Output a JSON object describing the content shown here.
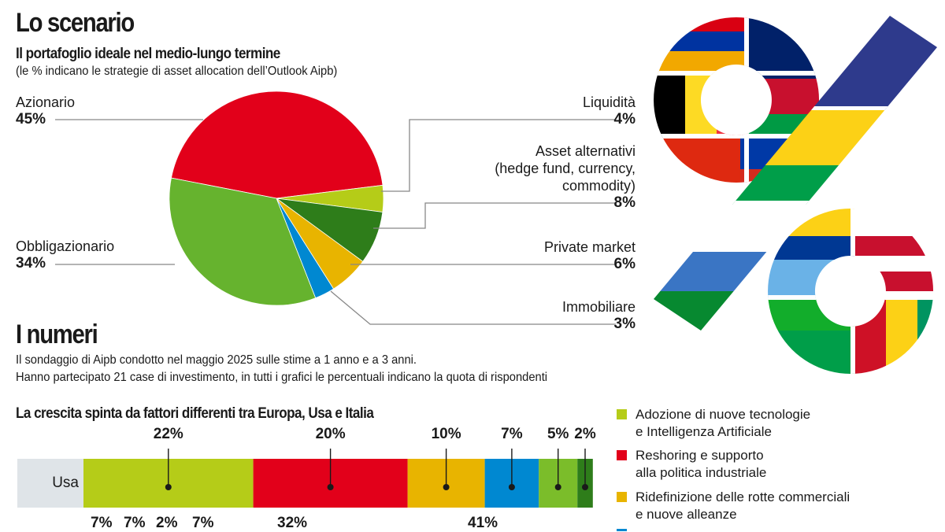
{
  "scenario": {
    "title": "Lo scenario",
    "subtitle": "Il portafoglio ideale nel medio-lungo termine",
    "note": "(le % indicano le strategie di asset allocation dell’Outlook Aipb)"
  },
  "numeri": {
    "title": "I numeri",
    "line1": "Il sondaggio di Aipb condotto nel maggio 2025 sulle stime a 1 anno e a 3 anni.",
    "line2": "Hanno partecipato 21 case di investimento, in tutti i grafici le percentuali indicano la quota di rispondenti"
  },
  "chart_data": [
    {
      "type": "pie",
      "title": "Il portafoglio ideale nel medio-lungo termine",
      "unit": "%",
      "slices": [
        {
          "label": "Azionario",
          "value": 45,
          "color": "#e2001a"
        },
        {
          "label": "Liquidità",
          "value": 4,
          "color": "#b5cc18"
        },
        {
          "label": "Asset alternativi (hedge fund, currency, commodity)",
          "value": 8,
          "color": "#2e7d1a"
        },
        {
          "label": "Private market",
          "value": 6,
          "color": "#e8b400"
        },
        {
          "label": "Immobiliare",
          "value": 3,
          "color": "#0088d1"
        },
        {
          "label": "Obbligazionario",
          "value": 34,
          "color": "#66b32e"
        }
      ],
      "labels_text": {
        "azionario": {
          "name": "Azionario",
          "pct": "45%"
        },
        "obbligazionario": {
          "name": "Obbligazionario",
          "pct": "34%"
        },
        "liquidita": {
          "name": "Liquidità",
          "pct": "4%"
        },
        "alternativi": {
          "name1": "Asset alternativi",
          "name2": "(hedge fund, currency,",
          "name3": "commodity)",
          "pct": "8%"
        },
        "private": {
          "name": "Private market",
          "pct": "6%"
        },
        "immobiliare": {
          "name": "Immobiliare",
          "pct": "3%"
        }
      }
    },
    {
      "type": "bar",
      "stacked": true,
      "title": "La crescita spinta da fattori differenti tra Europa, Usa e Italia",
      "unit": "%",
      "categories": [
        "Usa"
      ],
      "series": [
        {
          "name": "Adozione di nuove tecnologie e Intelligenza Artificiale",
          "values": [
            22
          ],
          "color": "#b5cc18"
        },
        {
          "name": "Reshoring e supporto alla politica industriale",
          "values": [
            20
          ],
          "color": "#e2001a"
        },
        {
          "name": "Ridefinizione delle rotte commerciali e nuove alleanze",
          "values": [
            10
          ],
          "color": "#e8b400"
        },
        {
          "name": "",
          "values": [
            7
          ],
          "color": "#0088d1"
        },
        {
          "name": "",
          "values": [
            5
          ],
          "color": "#7bbd2a"
        },
        {
          "name": "",
          "values": [
            2
          ],
          "color": "#2e7d1a"
        }
      ],
      "other_value_labels": [
        "7%",
        "7%",
        "2%",
        "7%",
        "32%",
        "41%"
      ]
    }
  ],
  "legend": [
    {
      "line1": "Adozione di nuove tecnologie",
      "line2": "e Intelligenza Artificiale",
      "color": "#b5cc18"
    },
    {
      "line1": "Reshoring e supporto",
      "line2": "alla politica industriale",
      "color": "#e2001a"
    },
    {
      "line1": "Ridefinizione delle rotte commerciali",
      "line2": "e nuove alleanze",
      "color": "#e8b400"
    }
  ],
  "decoration": {
    "icon": "percent-sign-flags-icon"
  }
}
